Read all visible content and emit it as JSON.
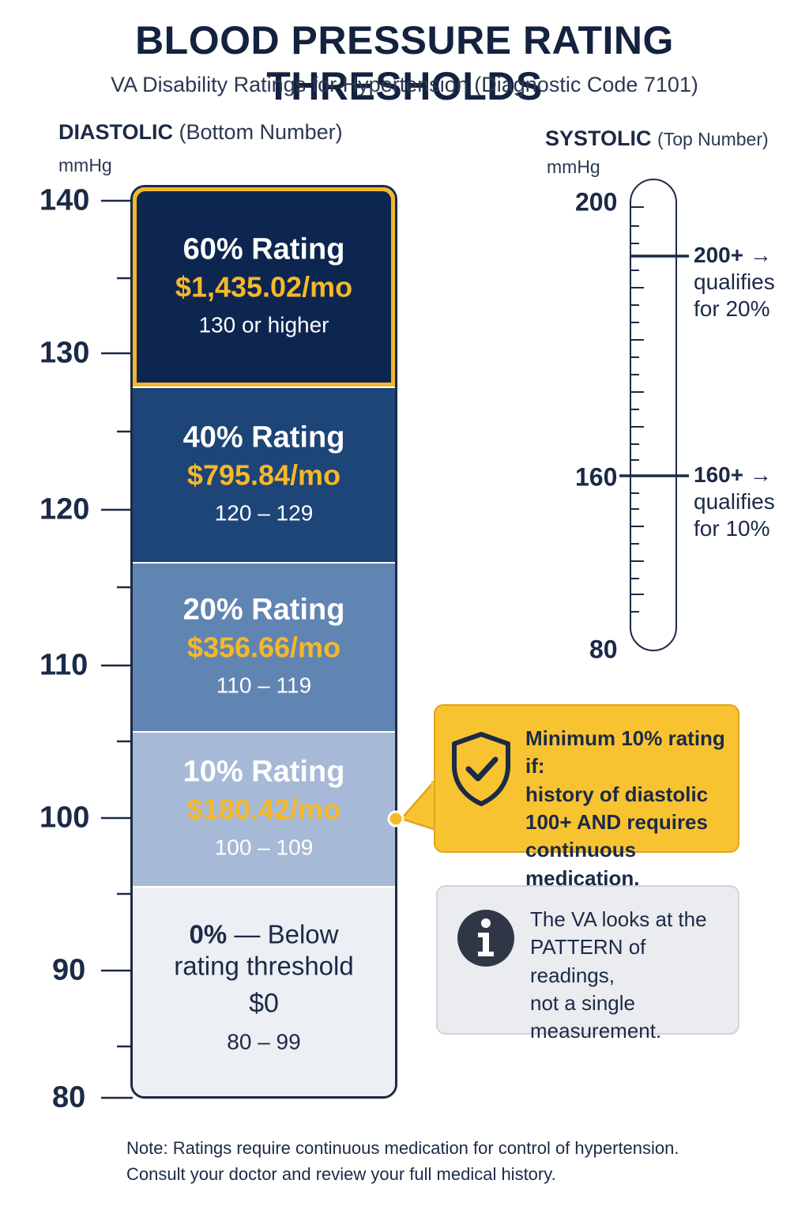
{
  "header": {
    "title": "BLOOD PRESSURE RATING THRESHOLDS",
    "subtitle": "VA Disability Ratings for Hypertension (Diagnostic Code 7101)"
  },
  "diastolic": {
    "title_bold": "DIASTOLIC",
    "title_rest": "(Bottom Number)",
    "unit": "mmHg",
    "ticks": [
      "140",
      "130",
      "120",
      "110",
      "100",
      "90",
      "80"
    ],
    "tick_values": [
      140,
      130,
      120,
      110,
      100,
      90,
      80
    ],
    "bands": [
      {
        "label": "60% Rating",
        "amount": "$1,435.02/mo",
        "range": "130 or higher",
        "color": "#0d2650"
      },
      {
        "label": "40% Rating",
        "amount": "$795.84/mo",
        "range": "120 – 129",
        "color": "#1d4577"
      },
      {
        "label": "20% Rating",
        "amount": "$356.66/mo",
        "range": "110 – 119",
        "color": "#6185b3"
      },
      {
        "label": "10% Rating",
        "amount": "$180.42/mo",
        "range": "100 – 109",
        "color": "#a6b9d6"
      },
      {
        "label_line1": "0% — Below",
        "label_line2": "rating threshold",
        "amount": "$0",
        "range": "80 – 99",
        "color": "#eceff3"
      }
    ]
  },
  "systolic": {
    "title_bold": "SYSTOLIC",
    "title_rest": "(Top Number)",
    "unit": "mmHg",
    "ticks": [
      "200",
      "160",
      "80"
    ],
    "thresholds": [
      {
        "value_label": "200+ →",
        "line2": "qualifies",
        "line3": "for 20%"
      },
      {
        "value_label": "160+ →",
        "line2": "qualifies",
        "line3": "for 10%"
      }
    ]
  },
  "callouts": {
    "minimum": {
      "line1": "Minimum 10% rating if:",
      "line2": "history of diastolic",
      "line3": "100+ AND requires",
      "line4": "continuous medication.",
      "icon": "shield-check-icon",
      "color": "#f8c331"
    },
    "info": {
      "line1": "The VA looks at the",
      "line2": "PATTERN of readings,",
      "line3": "not a single",
      "line4": "measurement.",
      "icon": "info-icon"
    }
  },
  "footnote": {
    "line1": "Note: Ratings require continuous medication for control of hypertension.",
    "line2": "Consult your doctor and review your full medical history."
  },
  "colors": {
    "navy": "#13223f",
    "accent_gold": "#f5b829"
  }
}
